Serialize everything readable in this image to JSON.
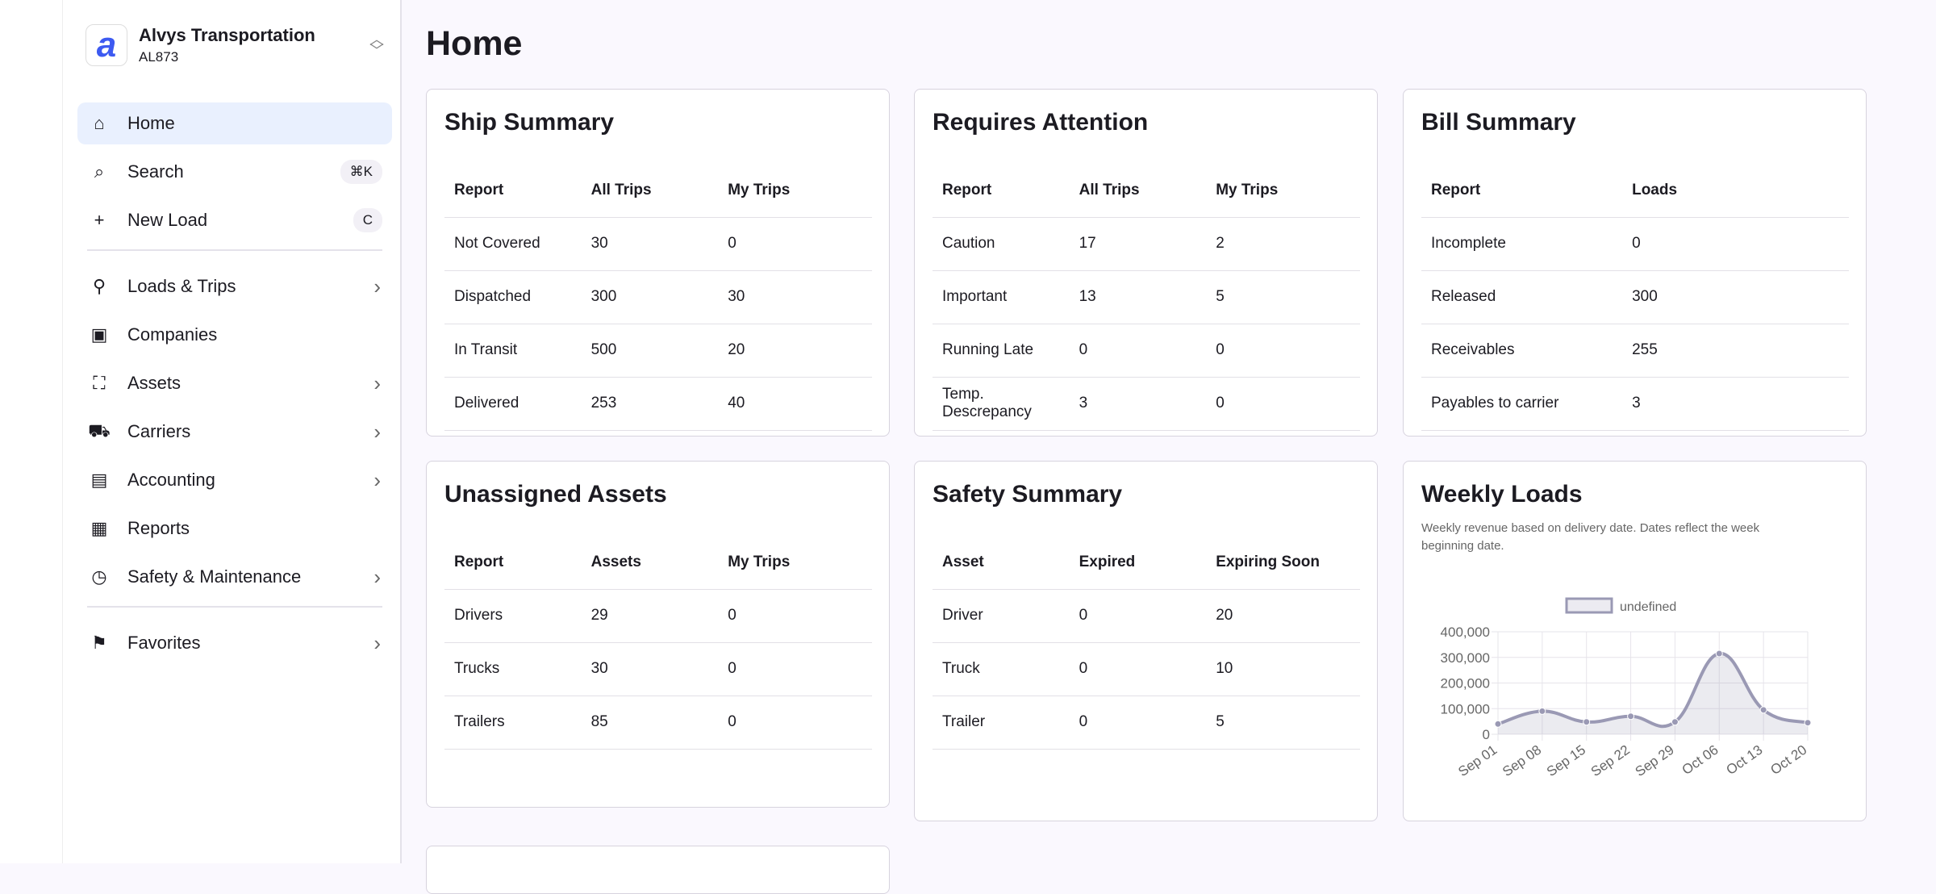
{
  "sidebar": {
    "org_name": "Alvys Transportation",
    "org_id": "AL873",
    "logo_letter": "a",
    "items": [
      {
        "label": "Home",
        "icon": "home-icon",
        "active": true
      },
      {
        "label": "Search",
        "icon": "search-icon",
        "shortcut": "⌘K"
      },
      {
        "label": "New Load",
        "icon": "plus-icon",
        "shortcut": "C"
      }
    ],
    "groups": [
      {
        "label": "Loads & Trips",
        "icon": "route-icon",
        "chevron": true
      },
      {
        "label": "Companies",
        "icon": "contact-book-icon"
      },
      {
        "label": "Assets",
        "icon": "hierarchy-icon",
        "chevron": true
      },
      {
        "label": "Carriers",
        "icon": "truck-icon",
        "chevron": true
      },
      {
        "label": "Accounting",
        "icon": "ledger-icon",
        "chevron": true
      },
      {
        "label": "Reports",
        "icon": "report-icon"
      },
      {
        "label": "Safety & Maintenance",
        "icon": "clipboard-clock-icon",
        "chevron": true
      }
    ],
    "favorites": {
      "label": "Favorites",
      "icon": "bookmark-icon"
    }
  },
  "page_title": "Home",
  "cards": [
    {
      "title": "Ship Summary",
      "headers": [
        "Report",
        "All Trips",
        "My Trips"
      ],
      "rows": [
        [
          "Not Covered",
          "30",
          "0"
        ],
        [
          "Dispatched",
          "300",
          "30"
        ],
        [
          "In Transit",
          "500",
          "20"
        ],
        [
          "Delivered",
          "253",
          "40"
        ]
      ]
    },
    {
      "title": "Requires Attention",
      "headers": [
        "Report",
        "All Trips",
        "My Trips"
      ],
      "rows": [
        [
          "Caution",
          "17",
          "2"
        ],
        [
          "Important",
          "13",
          "5"
        ],
        [
          "Running Late",
          "0",
          "0"
        ],
        [
          "Temp. Descrepancy",
          "3",
          "0"
        ]
      ]
    },
    {
      "title": "Bill Summary",
      "headers": [
        "Report",
        "Loads"
      ],
      "rows": [
        [
          "Incomplete",
          "0"
        ],
        [
          "Released",
          "300"
        ],
        [
          "Receivables",
          "255"
        ],
        [
          "Payables to carrier",
          "3"
        ]
      ]
    },
    {
      "title": "Unassigned Assets",
      "headers": [
        "Report",
        "Assets",
        "My Trips"
      ],
      "rows": [
        [
          "Drivers",
          "29",
          "0"
        ],
        [
          "Trucks",
          "30",
          "0"
        ],
        [
          "Trailers",
          "85",
          "0"
        ]
      ]
    },
    {
      "title": "Safety Summary",
      "headers": [
        "Asset",
        "Expired",
        "Expiring Soon"
      ],
      "rows": [
        [
          "Driver",
          "0",
          "20"
        ],
        [
          "Truck",
          "0",
          "10"
        ],
        [
          "Trailer",
          "0",
          "5"
        ]
      ]
    }
  ],
  "weekly": {
    "title": "Weekly Loads",
    "subtitle": "Weekly revenue based on delivery date. Dates reflect the week beginning date."
  },
  "chart_data": {
    "type": "area",
    "x": [
      "Sep 01",
      "Sep 08",
      "Sep 15",
      "Sep 22",
      "Sep 29",
      "Oct 06",
      "Oct 13",
      "Oct 20"
    ],
    "series": [
      {
        "name": "undefined",
        "values": [
          40000,
          90000,
          48000,
          70000,
          48000,
          315000,
          95000,
          45000
        ]
      }
    ],
    "ylim": [
      0,
      400000
    ],
    "yticks": [
      "0",
      "100,000",
      "200,000",
      "300,000",
      "400,000"
    ],
    "grid": true,
    "legend": "top",
    "color": "#9a99b4"
  }
}
